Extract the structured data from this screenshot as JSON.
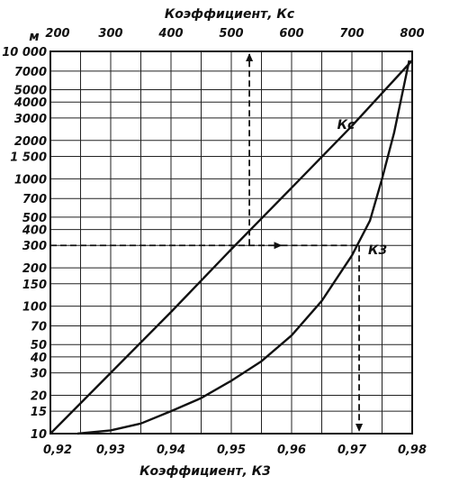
{
  "chart_data": {
    "type": "line",
    "top_axis": {
      "title": "Коэффициент, Кс",
      "ticks": [
        "200",
        "300",
        "400",
        "500",
        "600",
        "700",
        "800"
      ],
      "range": [
        200,
        800
      ]
    },
    "bottom_axis": {
      "title": "Коэффициент, К3",
      "ticks": [
        "0,92",
        "0,93",
        "0,94",
        "0,95",
        "0,96",
        "0,97",
        "0,98"
      ],
      "range": [
        0.92,
        0.98
      ]
    },
    "left_axis": {
      "unit": "м",
      "scale": "log",
      "range": [
        10,
        10000
      ],
      "ticks": [
        "10 000",
        "7000",
        "5000",
        "4000",
        "3000",
        "2000",
        "1 500",
        "1000",
        "700",
        "500",
        "400",
        "300",
        "200",
        "150",
        "100",
        "70",
        "50",
        "40",
        "30",
        "20",
        "15",
        "10"
      ],
      "tick_values": [
        10000,
        7000,
        5000,
        4000,
        3000,
        2000,
        1500,
        1000,
        700,
        500,
        400,
        300,
        200,
        150,
        100,
        70,
        50,
        40,
        30,
        20,
        15,
        10
      ]
    },
    "grid": true,
    "series": [
      {
        "name": "Кс",
        "x_axis": "top",
        "x": [
          200,
          300,
          400,
          500,
          600,
          700,
          800
        ],
        "y": [
          10,
          30,
          90,
          280,
          850,
          2600,
          8500
        ]
      },
      {
        "name": "К3",
        "x_axis": "bottom",
        "x": [
          0.9245,
          0.93,
          0.935,
          0.94,
          0.945,
          0.95,
          0.955,
          0.96,
          0.965,
          0.97,
          0.973,
          0.975,
          0.977,
          0.9795
        ],
        "y": [
          10,
          10.6,
          12,
          15,
          19,
          26,
          37,
          59,
          110,
          250,
          470,
          1000,
          2300,
          8500
        ]
      }
    ],
    "example_lines": [
      {
        "name": "vertical-up",
        "x_axis": "top",
        "x": 530,
        "y_from": 300,
        "y_to": 10000
      },
      {
        "name": "horizontal",
        "y": 300,
        "from": "left",
        "to_x_bottom": 0.9712
      },
      {
        "name": "vertical-down",
        "x_axis": "bottom",
        "x": 0.9712,
        "y_from": 300,
        "y_to": 10
      }
    ]
  }
}
